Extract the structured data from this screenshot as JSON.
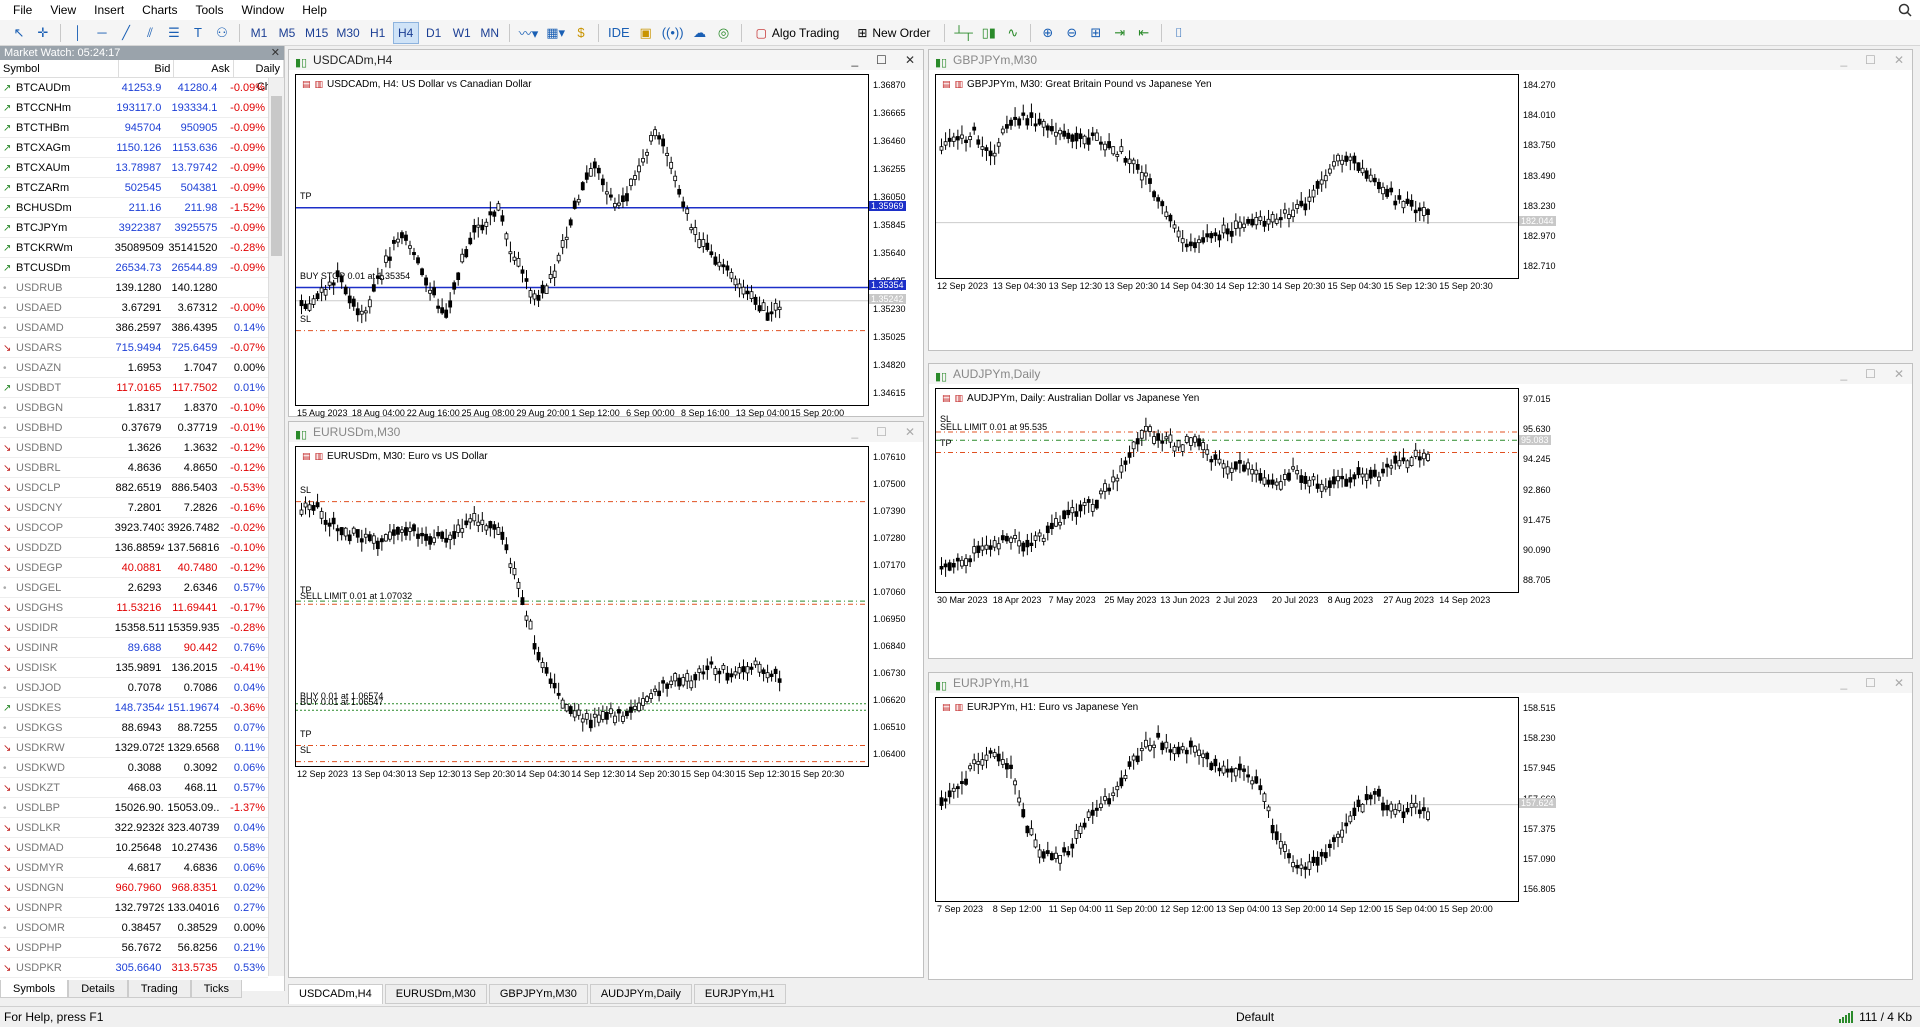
{
  "menu": [
    "File",
    "View",
    "Insert",
    "Charts",
    "Tools",
    "Window",
    "Help"
  ],
  "toolbar": {
    "timeframes": [
      "M1",
      "M5",
      "M15",
      "M30",
      "H1",
      "H4",
      "D1",
      "W1",
      "MN"
    ],
    "active_timeframe": "H4",
    "ide": "IDE",
    "algo_trading": "Algo Trading",
    "new_order": "New Order"
  },
  "market_watch": {
    "title": "Market Watch: 05:24:17",
    "columns": [
      "Symbol",
      "Bid",
      "Ask",
      "Daily Ch..."
    ],
    "rows": [
      {
        "s": "BTCAUDm",
        "b": "41253.9",
        "a": "41280.4",
        "c": "-0.09%",
        "d": "up",
        "bc": "blue",
        "ac": "blue",
        "cc": "red"
      },
      {
        "s": "BTCCNHm",
        "b": "193117.0",
        "a": "193334.1",
        "c": "-0.09%",
        "d": "up",
        "bc": "blue",
        "ac": "blue",
        "cc": "red"
      },
      {
        "s": "BTCTHBm",
        "b": "945704",
        "a": "950905",
        "c": "-0.09%",
        "d": "up",
        "bc": "blue",
        "ac": "blue",
        "cc": "red"
      },
      {
        "s": "BTCXAGm",
        "b": "1150.126",
        "a": "1153.636",
        "c": "-0.09%",
        "d": "up",
        "bc": "blue",
        "ac": "blue",
        "cc": "red"
      },
      {
        "s": "BTCXAUm",
        "b": "13.78987",
        "a": "13.79742",
        "c": "-0.09%",
        "d": "up",
        "bc": "blue",
        "ac": "blue",
        "cc": "red"
      },
      {
        "s": "BTCZARm",
        "b": "502545",
        "a": "504381",
        "c": "-0.09%",
        "d": "up",
        "bc": "blue",
        "ac": "blue",
        "cc": "red"
      },
      {
        "s": "BCHUSDm",
        "b": "211.16",
        "a": "211.98",
        "c": "-1.52%",
        "d": "up",
        "bc": "blue",
        "ac": "blue",
        "cc": "red"
      },
      {
        "s": "BTCJPYm",
        "b": "3922387",
        "a": "3925575",
        "c": "-0.09%",
        "d": "up",
        "bc": "blue",
        "ac": "blue",
        "cc": "red"
      },
      {
        "s": "BTCKRWm",
        "b": "35089509",
        "a": "35141520",
        "c": "-0.28%",
        "d": "up",
        "bc": "blk",
        "ac": "blk",
        "cc": "red"
      },
      {
        "s": "BTCUSDm",
        "b": "26534.73",
        "a": "26544.89",
        "c": "-0.09%",
        "d": "up",
        "bc": "blue",
        "ac": "blue",
        "cc": "red"
      },
      {
        "s": "USDRUB",
        "b": "139.1280",
        "a": "140.1280",
        "c": "",
        "d": "dot",
        "bc": "blk",
        "ac": "blk",
        "cc": "blk",
        "i": true
      },
      {
        "s": "USDAED",
        "b": "3.67291",
        "a": "3.67312",
        "c": "-0.00%",
        "d": "dot",
        "bc": "blk",
        "ac": "blk",
        "cc": "red",
        "i": true
      },
      {
        "s": "USDAMD",
        "b": "386.2597",
        "a": "386.4395",
        "c": "0.14%",
        "d": "dot",
        "bc": "blk",
        "ac": "blk",
        "cc": "blue",
        "i": true
      },
      {
        "s": "USDARS",
        "b": "715.9494",
        "a": "725.6459",
        "c": "-0.07%",
        "d": "dn",
        "bc": "blue",
        "ac": "blue",
        "cc": "red",
        "i": true
      },
      {
        "s": "USDAZN",
        "b": "1.6953",
        "a": "1.7047",
        "c": "0.00%",
        "d": "dot",
        "bc": "blk",
        "ac": "blk",
        "cc": "blk",
        "i": true
      },
      {
        "s": "USDBDT",
        "b": "117.0165",
        "a": "117.7502",
        "c": "0.01%",
        "d": "up",
        "bc": "red",
        "ac": "red",
        "cc": "blue",
        "i": true
      },
      {
        "s": "USDBGN",
        "b": "1.8317",
        "a": "1.8370",
        "c": "-0.10%",
        "d": "dot",
        "bc": "blk",
        "ac": "blk",
        "cc": "red",
        "i": true
      },
      {
        "s": "USDBHD",
        "b": "0.37679",
        "a": "0.37719",
        "c": "-0.01%",
        "d": "dot",
        "bc": "blk",
        "ac": "blk",
        "cc": "red",
        "i": true
      },
      {
        "s": "USDBND",
        "b": "1.3626",
        "a": "1.3632",
        "c": "-0.12%",
        "d": "dn",
        "bc": "blk",
        "ac": "blk",
        "cc": "red",
        "i": true
      },
      {
        "s": "USDBRL",
        "b": "4.8636",
        "a": "4.8650",
        "c": "-0.12%",
        "d": "dn",
        "bc": "blk",
        "ac": "blk",
        "cc": "red",
        "i": true
      },
      {
        "s": "USDCLP",
        "b": "882.6519",
        "a": "886.5403",
        "c": "-0.53%",
        "d": "dn",
        "bc": "blk",
        "ac": "blk",
        "cc": "red",
        "i": true
      },
      {
        "s": "USDCNY",
        "b": "7.2801",
        "a": "7.2826",
        "c": "-0.16%",
        "d": "dn",
        "bc": "blk",
        "ac": "blk",
        "cc": "red",
        "i": true
      },
      {
        "s": "USDCOP",
        "b": "3923.7403",
        "a": "3926.7482",
        "c": "-0.02%",
        "d": "dn",
        "bc": "blk",
        "ac": "blk",
        "cc": "red",
        "i": true
      },
      {
        "s": "USDDZD",
        "b": "136.88594",
        "a": "137.56816",
        "c": "-0.10%",
        "d": "dn",
        "bc": "blk",
        "ac": "blk",
        "cc": "red",
        "i": true
      },
      {
        "s": "USDEGP",
        "b": "40.0881",
        "a": "40.7480",
        "c": "-0.12%",
        "d": "dn",
        "bc": "red",
        "ac": "red",
        "cc": "red",
        "i": true
      },
      {
        "s": "USDGEL",
        "b": "2.6293",
        "a": "2.6346",
        "c": "0.57%",
        "d": "dot",
        "bc": "blk",
        "ac": "blk",
        "cc": "blue",
        "i": true
      },
      {
        "s": "USDGHS",
        "b": "11.53216",
        "a": "11.69441",
        "c": "-0.17%",
        "d": "dn",
        "bc": "red",
        "ac": "red",
        "cc": "red",
        "i": true
      },
      {
        "s": "USDIDR",
        "b": "15358.5114",
        "a": "15359.9357",
        "c": "-0.28%",
        "d": "dn",
        "bc": "blk",
        "ac": "blk",
        "cc": "red",
        "i": true
      },
      {
        "s": "USDINR",
        "b": "89.688",
        "a": "90.442",
        "c": "0.76%",
        "d": "dn",
        "bc": "blue",
        "ac": "red",
        "cc": "blue",
        "i": true
      },
      {
        "s": "USDISK",
        "b": "135.9891",
        "a": "136.2015",
        "c": "-0.41%",
        "d": "dn",
        "bc": "blk",
        "ac": "blk",
        "cc": "red",
        "i": true
      },
      {
        "s": "USDJOD",
        "b": "0.7078",
        "a": "0.7086",
        "c": "0.04%",
        "d": "dot",
        "bc": "blk",
        "ac": "blk",
        "cc": "blue",
        "i": true
      },
      {
        "s": "USDKES",
        "b": "148.73544",
        "a": "151.19674",
        "c": "-0.36%",
        "d": "up",
        "bc": "blue",
        "ac": "blue",
        "cc": "red",
        "i": true
      },
      {
        "s": "USDKGS",
        "b": "88.6943",
        "a": "88.7255",
        "c": "0.07%",
        "d": "dot",
        "bc": "blk",
        "ac": "blk",
        "cc": "blue",
        "i": true
      },
      {
        "s": "USDKRW",
        "b": "1329.0725",
        "a": "1329.6568",
        "c": "0.11%",
        "d": "dn",
        "bc": "blk",
        "ac": "blk",
        "cc": "blue",
        "i": true
      },
      {
        "s": "USDKWD",
        "b": "0.3088",
        "a": "0.3092",
        "c": "0.06%",
        "d": "dot",
        "bc": "blk",
        "ac": "blk",
        "cc": "blue",
        "i": true
      },
      {
        "s": "USDKZT",
        "b": "468.03",
        "a": "468.11",
        "c": "0.57%",
        "d": "dn",
        "bc": "blk",
        "ac": "blk",
        "cc": "blue",
        "i": true
      },
      {
        "s": "USDLBP",
        "b": "15026.90...",
        "a": "15053.09...",
        "c": "-1.37%",
        "d": "dot",
        "bc": "blk",
        "ac": "blk",
        "cc": "red",
        "i": true
      },
      {
        "s": "USDLKR",
        "b": "322.92328",
        "a": "323.40739",
        "c": "0.04%",
        "d": "dn",
        "bc": "blk",
        "ac": "blk",
        "cc": "blue",
        "i": true
      },
      {
        "s": "USDMAD",
        "b": "10.25648",
        "a": "10.27436",
        "c": "0.58%",
        "d": "dn",
        "bc": "blk",
        "ac": "blk",
        "cc": "blue",
        "i": true
      },
      {
        "s": "USDMYR",
        "b": "4.6817",
        "a": "4.6836",
        "c": "0.06%",
        "d": "dn",
        "bc": "blk",
        "ac": "blk",
        "cc": "blue",
        "i": true
      },
      {
        "s": "USDNGN",
        "b": "960.7960",
        "a": "968.8351",
        "c": "0.02%",
        "d": "dn",
        "bc": "red",
        "ac": "red",
        "cc": "blue",
        "i": true
      },
      {
        "s": "USDNPR",
        "b": "132.79729",
        "a": "133.04016",
        "c": "0.27%",
        "d": "dn",
        "bc": "blk",
        "ac": "blk",
        "cc": "blue",
        "i": true
      },
      {
        "s": "USDOMR",
        "b": "0.38457",
        "a": "0.38529",
        "c": "0.00%",
        "d": "dot",
        "bc": "blk",
        "ac": "blk",
        "cc": "blk",
        "i": true
      },
      {
        "s": "USDPHP",
        "b": "56.7672",
        "a": "56.8256",
        "c": "0.21%",
        "d": "dn",
        "bc": "blk",
        "ac": "blk",
        "cc": "blue",
        "i": true
      },
      {
        "s": "USDPKR",
        "b": "305.6640",
        "a": "313.5735",
        "c": "0.53%",
        "d": "dn",
        "bc": "blue",
        "ac": "red",
        "cc": "blue",
        "i": true
      }
    ],
    "tabs": [
      "Symbols",
      "Details",
      "Trading",
      "Ticks"
    ]
  },
  "charts": [
    {
      "id": "usdcad",
      "win_title": "USDCADm,H4",
      "desc": "USDCADm, H4:  US Dollar vs Canadian Dollar",
      "active": true,
      "yticks": [
        "1.36870",
        "1.36665",
        "1.36460",
        "1.36255",
        "1.36050",
        "1.35845",
        "1.35640",
        "1.35435",
        "1.35230",
        "1.35025",
        "1.34820",
        "1.34615"
      ],
      "xticks": [
        "15 Aug 2023",
        "18 Aug 04:00",
        "22 Aug 16:00",
        "25 Aug 08:00",
        "29 Aug 20:00",
        "1 Sep 12:00",
        "6 Sep 00:00",
        "8 Sep 16:00",
        "13 Sep 04:00",
        "15 Sep 20:00"
      ],
      "labels": [
        "TP",
        "BUY STOP 0.01 at 1.35354",
        "SL"
      ],
      "badges": [
        "1.35969",
        "1.35354",
        "1.35242"
      ]
    },
    {
      "id": "eurusd",
      "win_title": "EURUSDm,M30",
      "desc": "EURUSDm, M30:  Euro vs US Dollar",
      "active": false,
      "yticks": [
        "1.07610",
        "1.07500",
        "1.07390",
        "1.07280",
        "1.07170",
        "1.07060",
        "1.06950",
        "1.06840",
        "1.06730",
        "1.06620",
        "1.06510",
        "1.06400"
      ],
      "xticks": [
        "12 Sep 2023",
        "13 Sep 04:30",
        "13 Sep 12:30",
        "13 Sep 20:30",
        "14 Sep 04:30",
        "14 Sep 12:30",
        "14 Sep 20:30",
        "15 Sep 04:30",
        "15 Sep 12:30",
        "15 Sep 20:30"
      ],
      "labels": [
        "SL",
        "TP",
        "SELL LIMIT 0.01 at 1.07032",
        "BUY 0.01 at 1.06574",
        "BUY 0.01 at 1.06547",
        "TP",
        "SL"
      ],
      "badges": []
    },
    {
      "id": "gbpjpy",
      "win_title": "GBPJPYm,M30",
      "desc": "GBPJPYm, M30:  Great Britain Pound vs Japanese Yen",
      "active": false,
      "yticks": [
        "184.270",
        "184.010",
        "183.750",
        "183.490",
        "183.230",
        "182.970",
        "182.710"
      ],
      "xticks": [
        "12 Sep 2023",
        "13 Sep 04:30",
        "13 Sep 12:30",
        "13 Sep 20:30",
        "14 Sep 04:30",
        "14 Sep 12:30",
        "14 Sep 20:30",
        "15 Sep 04:30",
        "15 Sep 12:30",
        "15 Sep 20:30"
      ],
      "labels": [],
      "badges": [
        "182.044"
      ]
    },
    {
      "id": "audjpy",
      "win_title": "AUDJPYm,Daily",
      "desc": "AUDJPYm, Daily:  Australian Dollar vs Japanese Yen",
      "active": false,
      "yticks": [
        "97.015",
        "95.630",
        "94.245",
        "92.860",
        "91.475",
        "90.090",
        "88.705"
      ],
      "xticks": [
        "30 Mar 2023",
        "18 Apr 2023",
        "7 May 2023",
        "25 May 2023",
        "13 Jun 2023",
        "2 Jul 2023",
        "20 Jul 2023",
        "8 Aug 2023",
        "27 Aug 2023",
        "14 Sep 2023"
      ],
      "labels": [
        "SL",
        "SELL LIMIT 0.01 at 95.535",
        "TP"
      ],
      "badges": [
        "95.083"
      ]
    },
    {
      "id": "eurjpy",
      "win_title": "EURJPYm,H1",
      "desc": "EURJPYm, H1:  Euro vs Japanese Yen",
      "active": false,
      "yticks": [
        "158.515",
        "158.230",
        "157.945",
        "157.660",
        "157.375",
        "157.090",
        "156.805"
      ],
      "xticks": [
        "7 Sep 2023",
        "8 Sep 12:00",
        "11 Sep 04:00",
        "11 Sep 20:00",
        "12 Sep 12:00",
        "13 Sep 04:00",
        "13 Sep 20:00",
        "14 Sep 12:00",
        "15 Sep 04:00",
        "15 Sep 20:00"
      ],
      "labels": [],
      "badges": [
        "157.624"
      ]
    }
  ],
  "chart_tabs": [
    "USDCADm,H4",
    "EURUSDm,M30",
    "GBPJPYm,M30",
    "AUDJPYm,Daily",
    "EURJPYm,H1"
  ],
  "status": {
    "help": "For Help, press F1",
    "profile": "Default",
    "traffic": "111 / 4 Kb"
  }
}
